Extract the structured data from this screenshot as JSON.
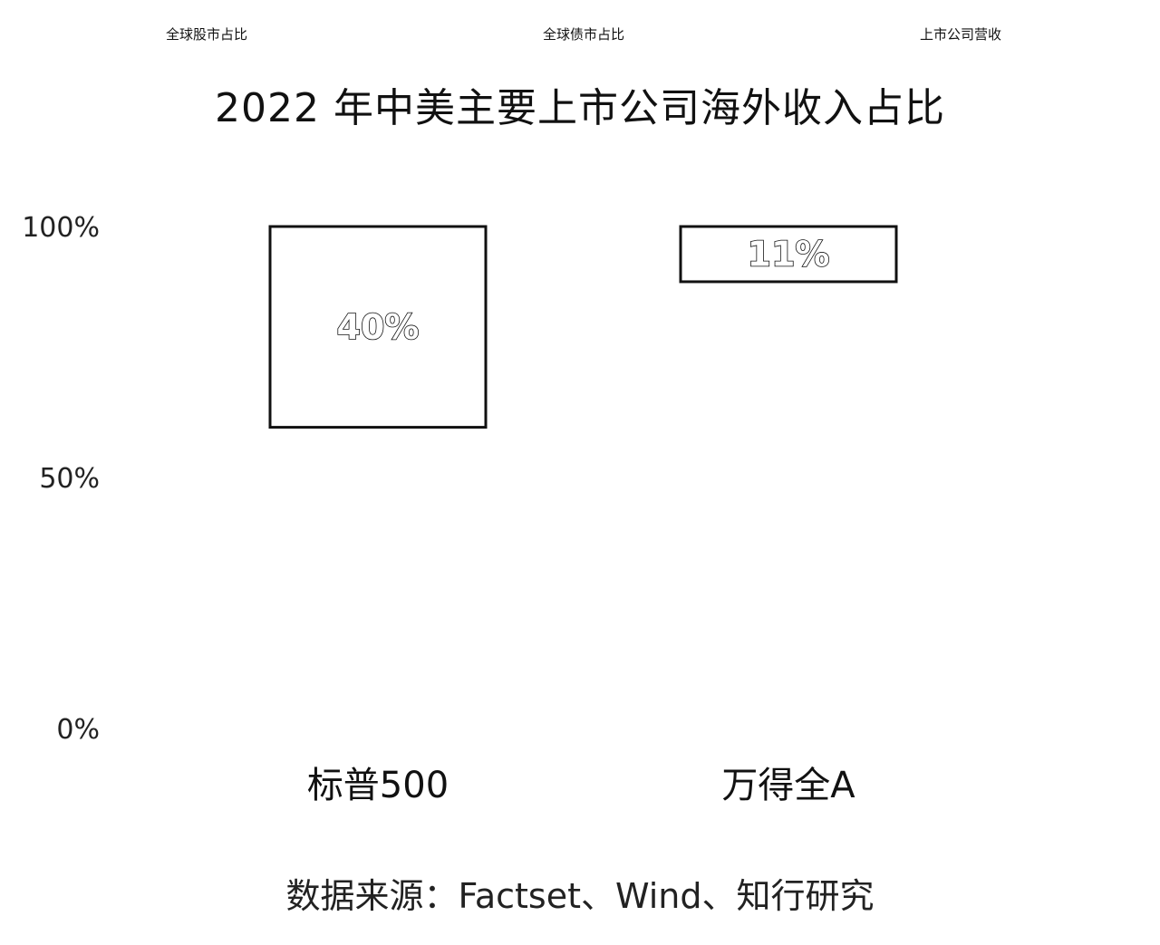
{
  "tabs": [
    {
      "label": "全球股市占比"
    },
    {
      "label": "全球债市占比"
    },
    {
      "label": "上市公司营收"
    }
  ],
  "source": "数据来源：Factset、Wind、知行研究",
  "colors": {
    "bar_fill": "#ffffff",
    "bar_stroke": "#111111",
    "text": "#111111"
  },
  "chart_data": {
    "type": "bar",
    "title": "2022 年中美主要上市公司海外收入占比",
    "categories": [
      "标普500",
      "万得全A"
    ],
    "values": [
      40,
      11
    ],
    "data_labels": [
      "40%",
      "11%"
    ],
    "y_ticks": [
      {
        "value": 0,
        "label": "0%"
      },
      {
        "value": 50,
        "label": "50%"
      },
      {
        "value": 100,
        "label": "100%"
      }
    ],
    "ylim": [
      0,
      100
    ],
    "grid": false,
    "legend": "none",
    "note": ""
  }
}
